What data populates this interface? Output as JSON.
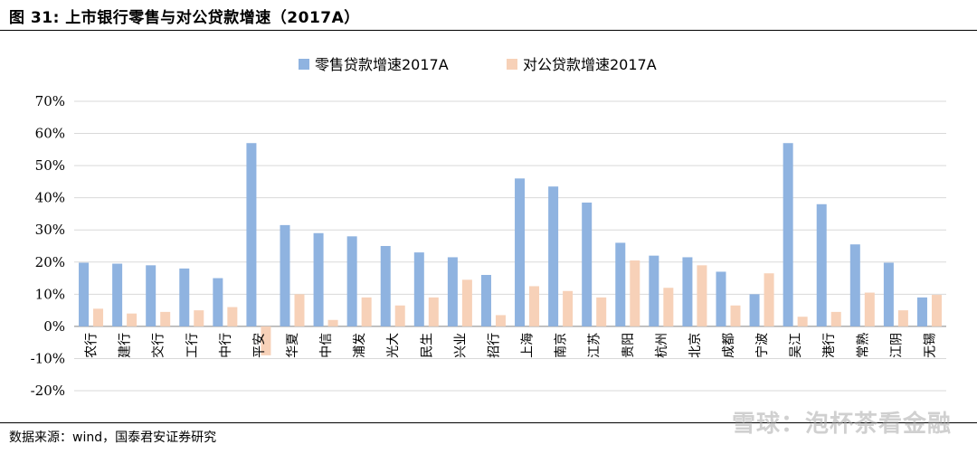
{
  "figure": {
    "title": "图 31:  上市银行零售与对公贷款增速（2017A）",
    "source": "数据来源：wind，国泰君安证券研究",
    "watermark": "雪球：泡杯茶看金融"
  },
  "colors": {
    "retail": "#8fb3e0",
    "corporate": "#f7d1b8",
    "grid": "#d9d9d9",
    "axis": "#000000"
  },
  "chart_data": {
    "type": "bar",
    "categories": [
      "农行",
      "建行",
      "交行",
      "工行",
      "中行",
      "平安",
      "华夏",
      "中信",
      "浦发",
      "光大",
      "民生",
      "兴业",
      "招行",
      "上海",
      "南京",
      "江苏",
      "贵阳",
      "杭州",
      "北京",
      "成都",
      "宁波",
      "吴江",
      "港行",
      "常熟",
      "江阴",
      "无锡"
    ],
    "series": [
      {
        "name": "零售贷款增速2017A",
        "values": [
          19.8,
          19.5,
          19.0,
          18.0,
          15.0,
          57.0,
          31.5,
          29.0,
          28.0,
          25.0,
          23.0,
          21.5,
          16.0,
          46.0,
          43.5,
          38.5,
          26.0,
          22.0,
          21.5,
          17.0,
          10.0,
          57.0,
          38.0,
          25.5,
          19.8,
          9.0
        ]
      },
      {
        "name": "对公贷款增速2017A",
        "values": [
          5.5,
          4.0,
          4.5,
          5.0,
          6.0,
          -9.0,
          10.0,
          2.0,
          9.0,
          6.5,
          9.0,
          14.5,
          3.5,
          12.5,
          11.0,
          9.0,
          20.5,
          12.0,
          19.0,
          6.5,
          16.5,
          3.0,
          4.5,
          10.5,
          5.0,
          9.8
        ]
      }
    ],
    "y_ticks": [
      "-20%",
      "-10%",
      "0%",
      "10%",
      "20%",
      "30%",
      "40%",
      "50%",
      "60%",
      "70%"
    ],
    "ylim": [
      -20,
      70
    ],
    "grid": true,
    "legend_position": "top-center"
  }
}
